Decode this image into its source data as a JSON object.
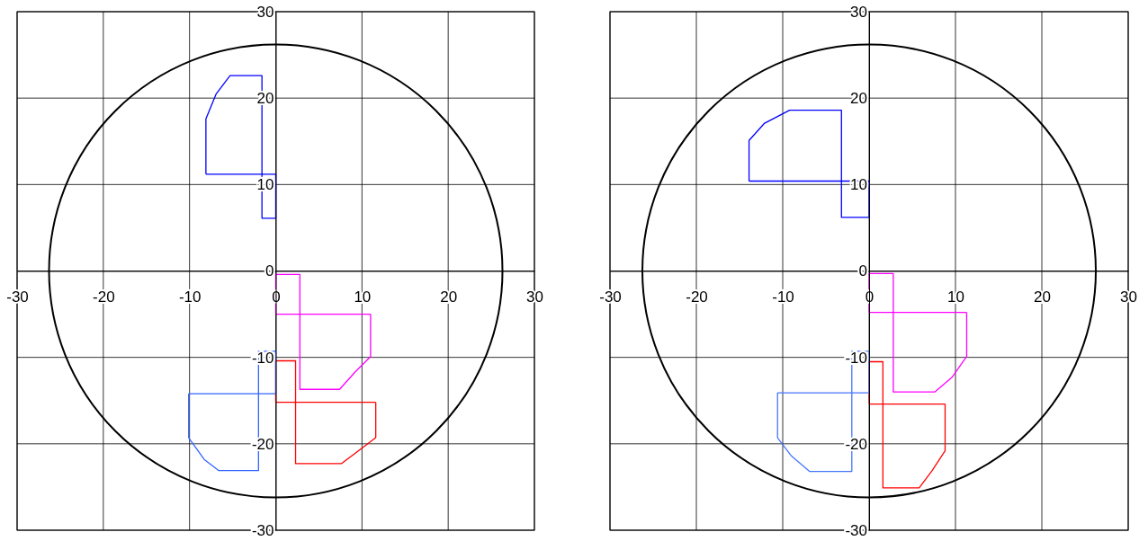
{
  "chart_data": [
    {
      "type": "line",
      "xlim": [
        -30,
        30
      ],
      "ylim": [
        -30,
        30
      ],
      "xticks": [
        -30,
        -20,
        -10,
        0,
        10,
        20,
        30
      ],
      "yticks": [
        -30,
        -20,
        -10,
        0,
        10,
        20,
        30
      ],
      "grid": true,
      "marker": "none",
      "line_style": "solid",
      "series": [
        {
          "color": "#0000ff",
          "x": [
            -8.1,
            -8.1,
            -6.9,
            -5.3,
            -1.6,
            -1.6,
            0
          ],
          "values": [
            11.2,
            17.6,
            20.5,
            22.6,
            22.6,
            6.1,
            6.1
          ]
        },
        {
          "color": "#0000ff",
          "x": [
            -8.1,
            0,
            0
          ],
          "values": [
            11.2,
            11.2,
            6.1
          ]
        },
        {
          "color": "#ff00ff",
          "x": [
            0,
            0,
            2.8,
            2.8,
            7.4,
            9.2,
            11,
            11
          ],
          "values": [
            -5,
            -0.4,
            -0.4,
            -13.7,
            -13.7,
            -11.7,
            -9.9,
            -5
          ]
        },
        {
          "color": "#ff00ff",
          "x": [
            0,
            11
          ],
          "values": [
            -5,
            -5
          ]
        },
        {
          "color": "#ff0000",
          "x": [
            0,
            0,
            2.3,
            2.3,
            7.6,
            9.2,
            11.6,
            11.6
          ],
          "values": [
            -15.2,
            -10.4,
            -10.4,
            -22.3,
            -22.3,
            -21.1,
            -19.3,
            -15.2
          ]
        },
        {
          "color": "#ff0000",
          "x": [
            0,
            11.6
          ],
          "values": [
            -15.2,
            -15.2
          ]
        },
        {
          "color": "#3366ff",
          "x": [
            -10.1,
            0,
            0
          ],
          "values": [
            -14.2,
            -14.2,
            -9.3
          ]
        },
        {
          "color": "#3366ff",
          "x": [
            -10.1,
            -10.1,
            -8.3,
            -6.6,
            -2,
            -2,
            0
          ],
          "values": [
            -14.2,
            -19.3,
            -21.8,
            -23.1,
            -23.1,
            -9.3,
            -9.3
          ]
        }
      ]
    },
    {
      "type": "line",
      "xlim": [
        -30,
        30
      ],
      "ylim": [
        -30,
        30
      ],
      "xticks": [
        -30,
        -20,
        -10,
        0,
        10,
        20,
        30
      ],
      "yticks": [
        -30,
        -20,
        -10,
        0,
        10,
        20,
        30
      ],
      "grid": true,
      "marker": "none",
      "line_style": "solid",
      "series": [
        {
          "color": "#0000ff",
          "x": [
            -13.9,
            -13.9,
            -12.1,
            -9.2,
            -3.2,
            -3.2,
            0
          ],
          "values": [
            10.4,
            15.1,
            17.1,
            18.6,
            18.6,
            6.2,
            6.2
          ]
        },
        {
          "color": "#0000ff",
          "x": [
            -13.9,
            0,
            0
          ],
          "values": [
            10.4,
            10.4,
            6.2
          ]
        },
        {
          "color": "#ff00ff",
          "x": [
            0,
            0,
            2.8,
            2.8,
            7.6,
            9.6,
            11.3,
            11.3
          ],
          "values": [
            -4.8,
            -0.3,
            -0.3,
            -14,
            -14,
            -12.3,
            -9.9,
            -4.8
          ]
        },
        {
          "color": "#ff00ff",
          "x": [
            0,
            11.3
          ],
          "values": [
            -4.8,
            -4.8
          ]
        },
        {
          "color": "#ff0000",
          "x": [
            0,
            0,
            1.6,
            1.6,
            5.8,
            7.3,
            8.8,
            8.8
          ],
          "values": [
            -15.4,
            -10.5,
            -10.5,
            -25.1,
            -25.1,
            -23.1,
            -20.8,
            -15.4
          ]
        },
        {
          "color": "#ff0000",
          "x": [
            0,
            8.8
          ],
          "values": [
            -15.4,
            -15.4
          ]
        },
        {
          "color": "#4477ff",
          "x": [
            -10.6,
            0,
            0
          ],
          "values": [
            -14.1,
            -14.1,
            -9.3
          ]
        },
        {
          "color": "#4477ff",
          "x": [
            -10.6,
            -10.6,
            -9,
            -6.9,
            -2,
            -2,
            0
          ],
          "values": [
            -14.1,
            -19.3,
            -21.4,
            -23.2,
            -23.2,
            -9.3,
            -9.3
          ]
        }
      ]
    }
  ]
}
